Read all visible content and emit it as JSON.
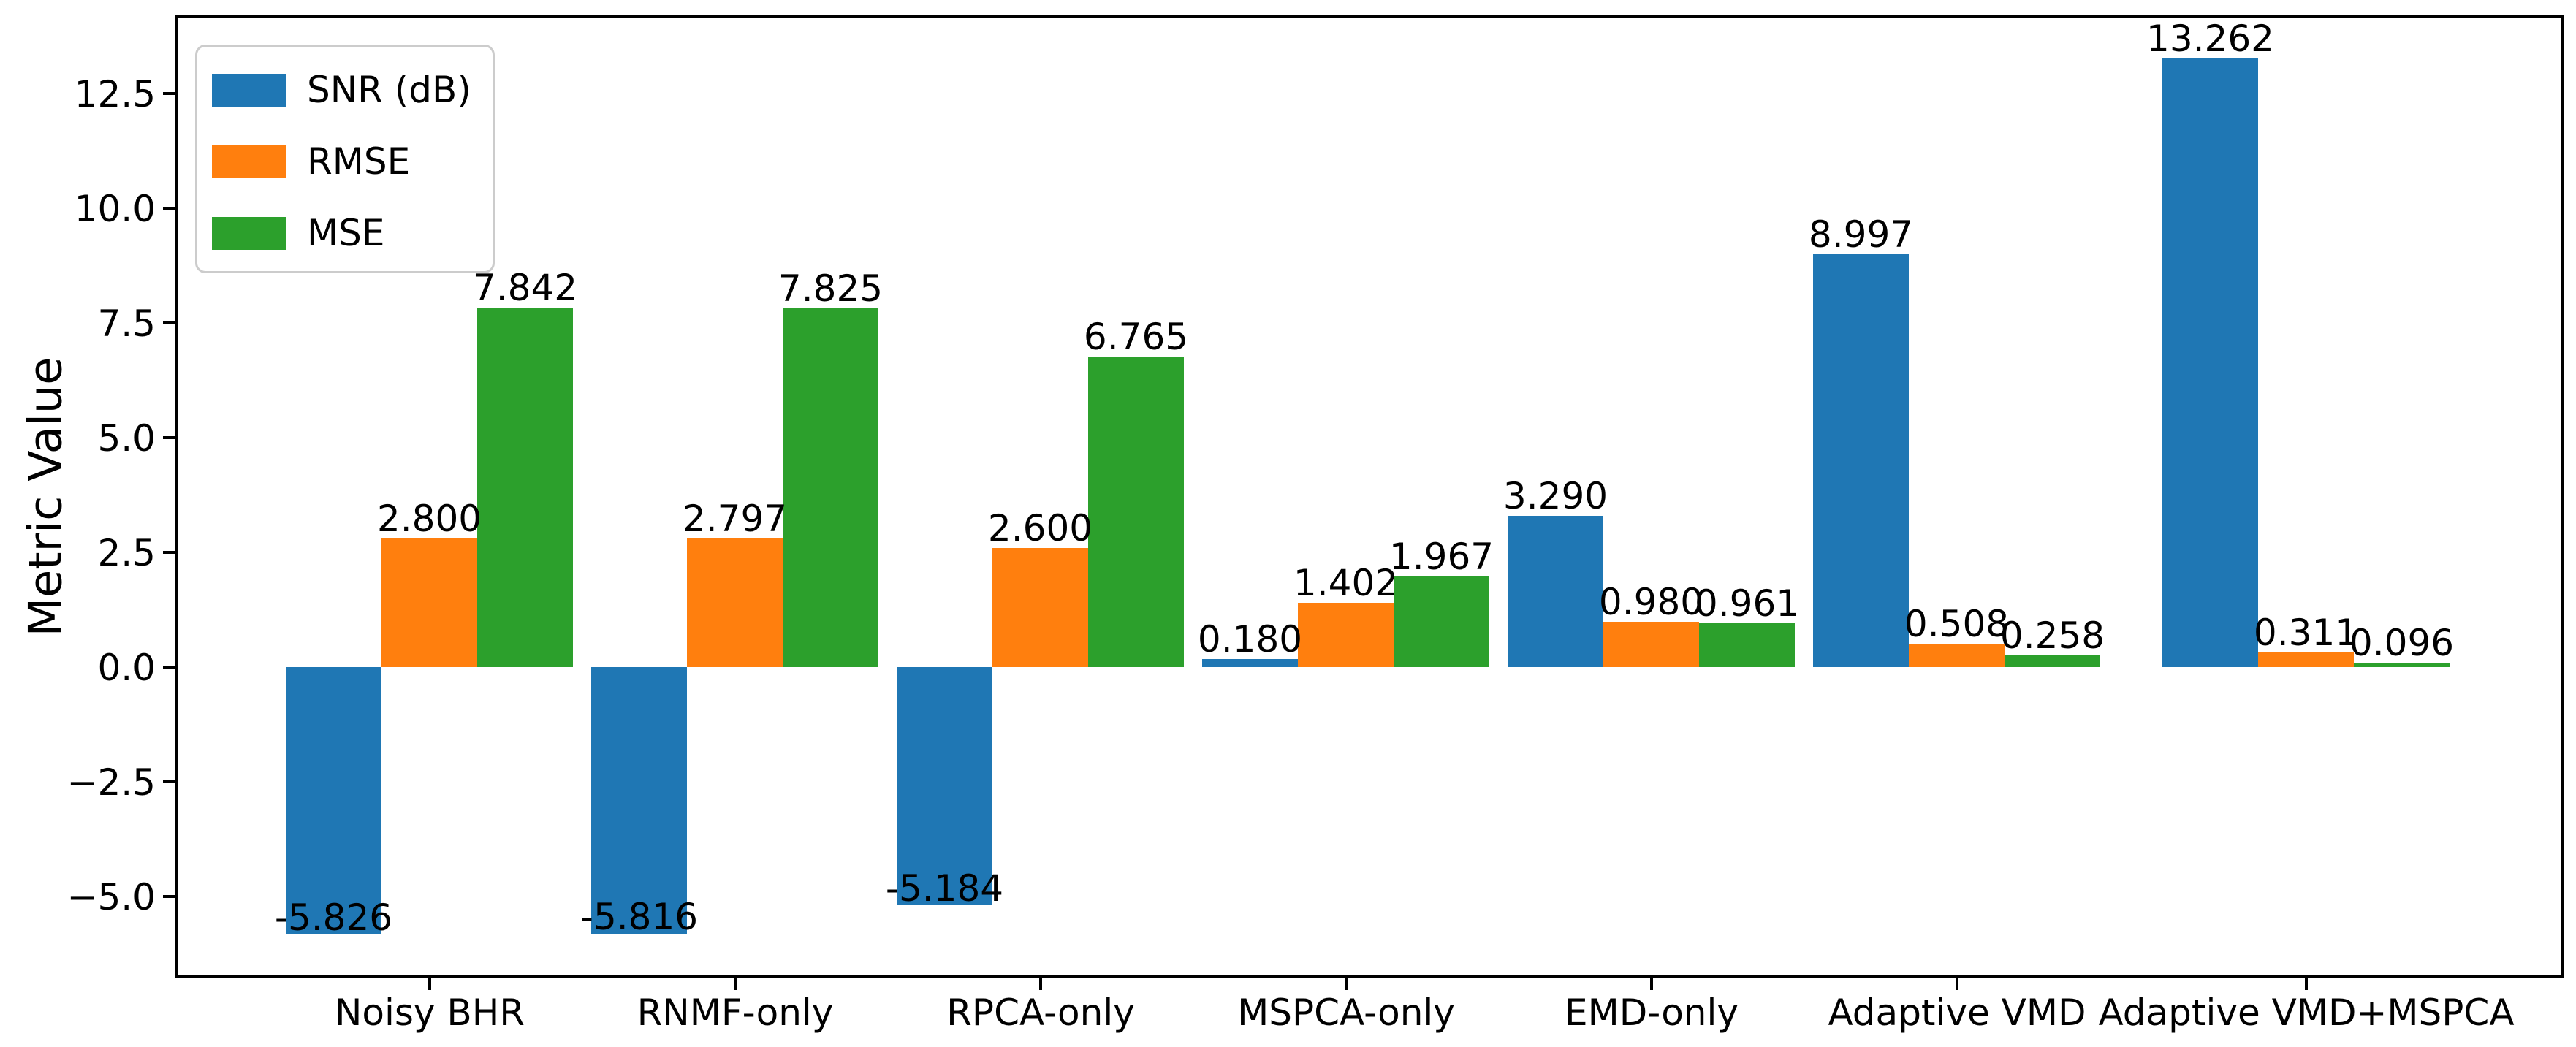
{
  "chart_data": {
    "type": "bar",
    "title": "",
    "xlabel": "",
    "ylabel": "Metric Value",
    "categories": [
      "Noisy BHR",
      "RNMF-only",
      "RPCA-only",
      "MSPCA-only",
      "EMD-only",
      "Adaptive VMD",
      "Adaptive VMD+MSPCA"
    ],
    "series": [
      {
        "name": "SNR (dB)",
        "color": "#1f77b4",
        "values": [
          -5.826,
          -5.816,
          -5.184,
          0.18,
          3.29,
          8.997,
          13.262
        ],
        "labels": [
          "-5.826",
          "-5.816",
          "-5.184",
          "0.180",
          "3.290",
          "8.997",
          "13.262"
        ]
      },
      {
        "name": "RMSE",
        "color": "#ff7f0e",
        "values": [
          2.8,
          2.797,
          2.6,
          1.402,
          0.98,
          0.508,
          0.311
        ],
        "labels": [
          "2.800",
          "2.797",
          "2.600",
          "1.402",
          "0.980",
          "0.508",
          "0.311"
        ]
      },
      {
        "name": "MSE",
        "color": "#2ca02c",
        "values": [
          7.842,
          7.825,
          6.765,
          1.967,
          0.961,
          0.258,
          0.096
        ],
        "labels": [
          "7.842",
          "7.825",
          "6.765",
          "1.967",
          "0.961",
          "0.258",
          "0.096"
        ]
      }
    ],
    "yticks": [
      {
        "value": 12.5,
        "label": "12.5"
      },
      {
        "value": 10.0,
        "label": "10.0"
      },
      {
        "value": 7.5,
        "label": "7.5"
      },
      {
        "value": 5.0,
        "label": "5.0"
      },
      {
        "value": 2.5,
        "label": "2.5"
      },
      {
        "value": 0.0,
        "label": "0.0"
      },
      {
        "value": -2.5,
        "label": "−2.5"
      },
      {
        "value": -5.0,
        "label": "−5.0"
      }
    ],
    "ylim": [
      -6.78,
      14.22
    ],
    "grid": false,
    "legend_position": "upper left",
    "axis_color": "#000000",
    "text_color": "#000000",
    "background_color": "#ffffff"
  }
}
